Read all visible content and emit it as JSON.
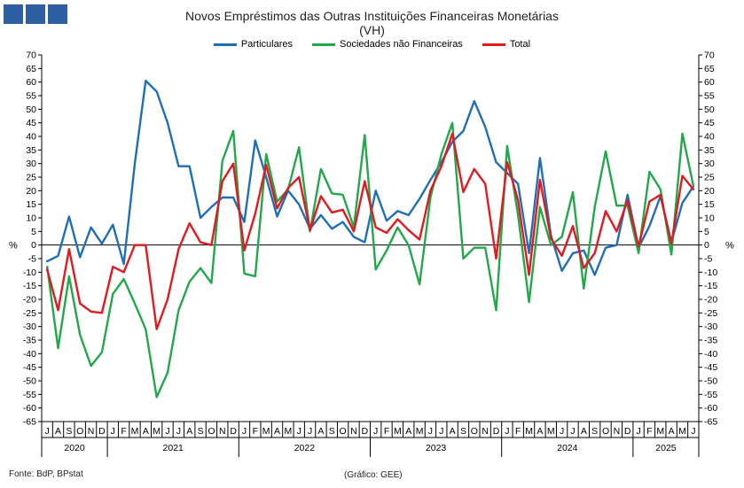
{
  "header": {
    "logo_icon": "bar-logo-icon"
  },
  "footer": {
    "source": "Fonte: BdP, BPstat",
    "credit": "(Gráfico: GEE)"
  },
  "chart_data": {
    "type": "line",
    "title": "Novos Empréstimos das Outras Instituições Financeiras Monetárias",
    "subtitle": "(VH)",
    "ylabel": "%",
    "ylim": [
      -65,
      70
    ],
    "yticks": [
      70,
      65,
      60,
      55,
      50,
      45,
      40,
      35,
      30,
      25,
      20,
      15,
      10,
      5,
      0,
      -5,
      -10,
      -15,
      -20,
      -25,
      -30,
      -35,
      -40,
      -45,
      -50,
      -55,
      -60,
      -65
    ],
    "grid": false,
    "legend_position": "top",
    "month_labels": [
      "J",
      "A",
      "S",
      "O",
      "N",
      "D",
      "J",
      "F",
      "M",
      "A",
      "M",
      "J",
      "J",
      "A",
      "S",
      "O",
      "N",
      "D",
      "J",
      "F",
      "M",
      "A",
      "M",
      "J",
      "J",
      "A",
      "S",
      "O",
      "N",
      "D",
      "J",
      "F",
      "M",
      "A",
      "M",
      "J",
      "J",
      "A",
      "S",
      "O",
      "N",
      "D",
      "J",
      "F",
      "M",
      "A",
      "M",
      "J",
      "J",
      "A",
      "S",
      "O",
      "N",
      "D",
      "J",
      "F",
      "M",
      "A",
      "M",
      "J"
    ],
    "years": [
      {
        "label": "2020",
        "start": 0,
        "count": 6
      },
      {
        "label": "2021",
        "start": 6,
        "count": 12
      },
      {
        "label": "2022",
        "start": 18,
        "count": 12
      },
      {
        "label": "2023",
        "start": 30,
        "count": 12
      },
      {
        "label": "2024",
        "start": 42,
        "count": 12
      },
      {
        "label": "2025",
        "start": 54,
        "count": 6
      }
    ],
    "series": [
      {
        "name": "Particulares",
        "color": "#1f6fb8",
        "values": [
          -6,
          -4,
          10.5,
          -4.5,
          6.5,
          0.5,
          7.5,
          -7,
          30,
          60.5,
          56.5,
          45,
          29,
          29,
          10,
          14,
          17.5,
          17.5,
          8.5,
          38.5,
          25,
          10.5,
          20,
          15,
          6,
          11,
          6,
          8.5,
          3,
          1,
          20,
          9,
          12.5,
          11,
          17,
          24,
          30.5,
          38,
          42,
          53,
          43.5,
          30.5,
          26.5,
          22.5,
          -3,
          32,
          3.5,
          -9.5,
          -3,
          -2,
          -11,
          -1,
          0,
          18.5,
          -1,
          7,
          18,
          1,
          15.5,
          21.5
        ]
      },
      {
        "name": "Sociedades não Financeiras",
        "color": "#22a84a",
        "values": [
          -8,
          -38,
          -11.5,
          -33,
          -44.5,
          -39.5,
          -18,
          -12.5,
          -21.5,
          -31,
          -56,
          -47,
          -24,
          -13.5,
          -8.5,
          -14,
          31,
          42,
          -10.5,
          -11.5,
          33.5,
          16,
          20.5,
          36,
          5,
          28,
          19,
          18.5,
          6.5,
          40.5,
          -9,
          -2,
          6.5,
          0,
          -14.5,
          17.5,
          33.5,
          45,
          -5,
          -1,
          -1,
          -24,
          36.5,
          11,
          -21,
          14,
          0,
          3,
          19.5,
          -16,
          14,
          34.5,
          14.5,
          14.5,
          -3,
          27,
          20.5,
          -3.5,
          41,
          22
        ]
      },
      {
        "name": "Total",
        "color": "#e01a1f",
        "values": [
          -9,
          -24,
          -1.5,
          -21.5,
          -24.5,
          -25,
          -8,
          -10,
          0,
          0,
          -31,
          -20,
          -1.5,
          8,
          1,
          0,
          23.5,
          30,
          -2,
          11.5,
          29.5,
          13.5,
          21,
          25,
          5.5,
          18,
          12,
          13,
          5,
          23.5,
          6.5,
          4.5,
          9.5,
          5.5,
          2,
          20,
          29,
          41,
          19.5,
          28,
          22.5,
          -5,
          30.5,
          16.5,
          -11,
          24,
          2.5,
          -4,
          7,
          -8.5,
          -3,
          12.5,
          5,
          16.5,
          -0.5,
          16,
          18.5,
          0.5,
          25.5,
          20.5
        ]
      }
    ]
  }
}
